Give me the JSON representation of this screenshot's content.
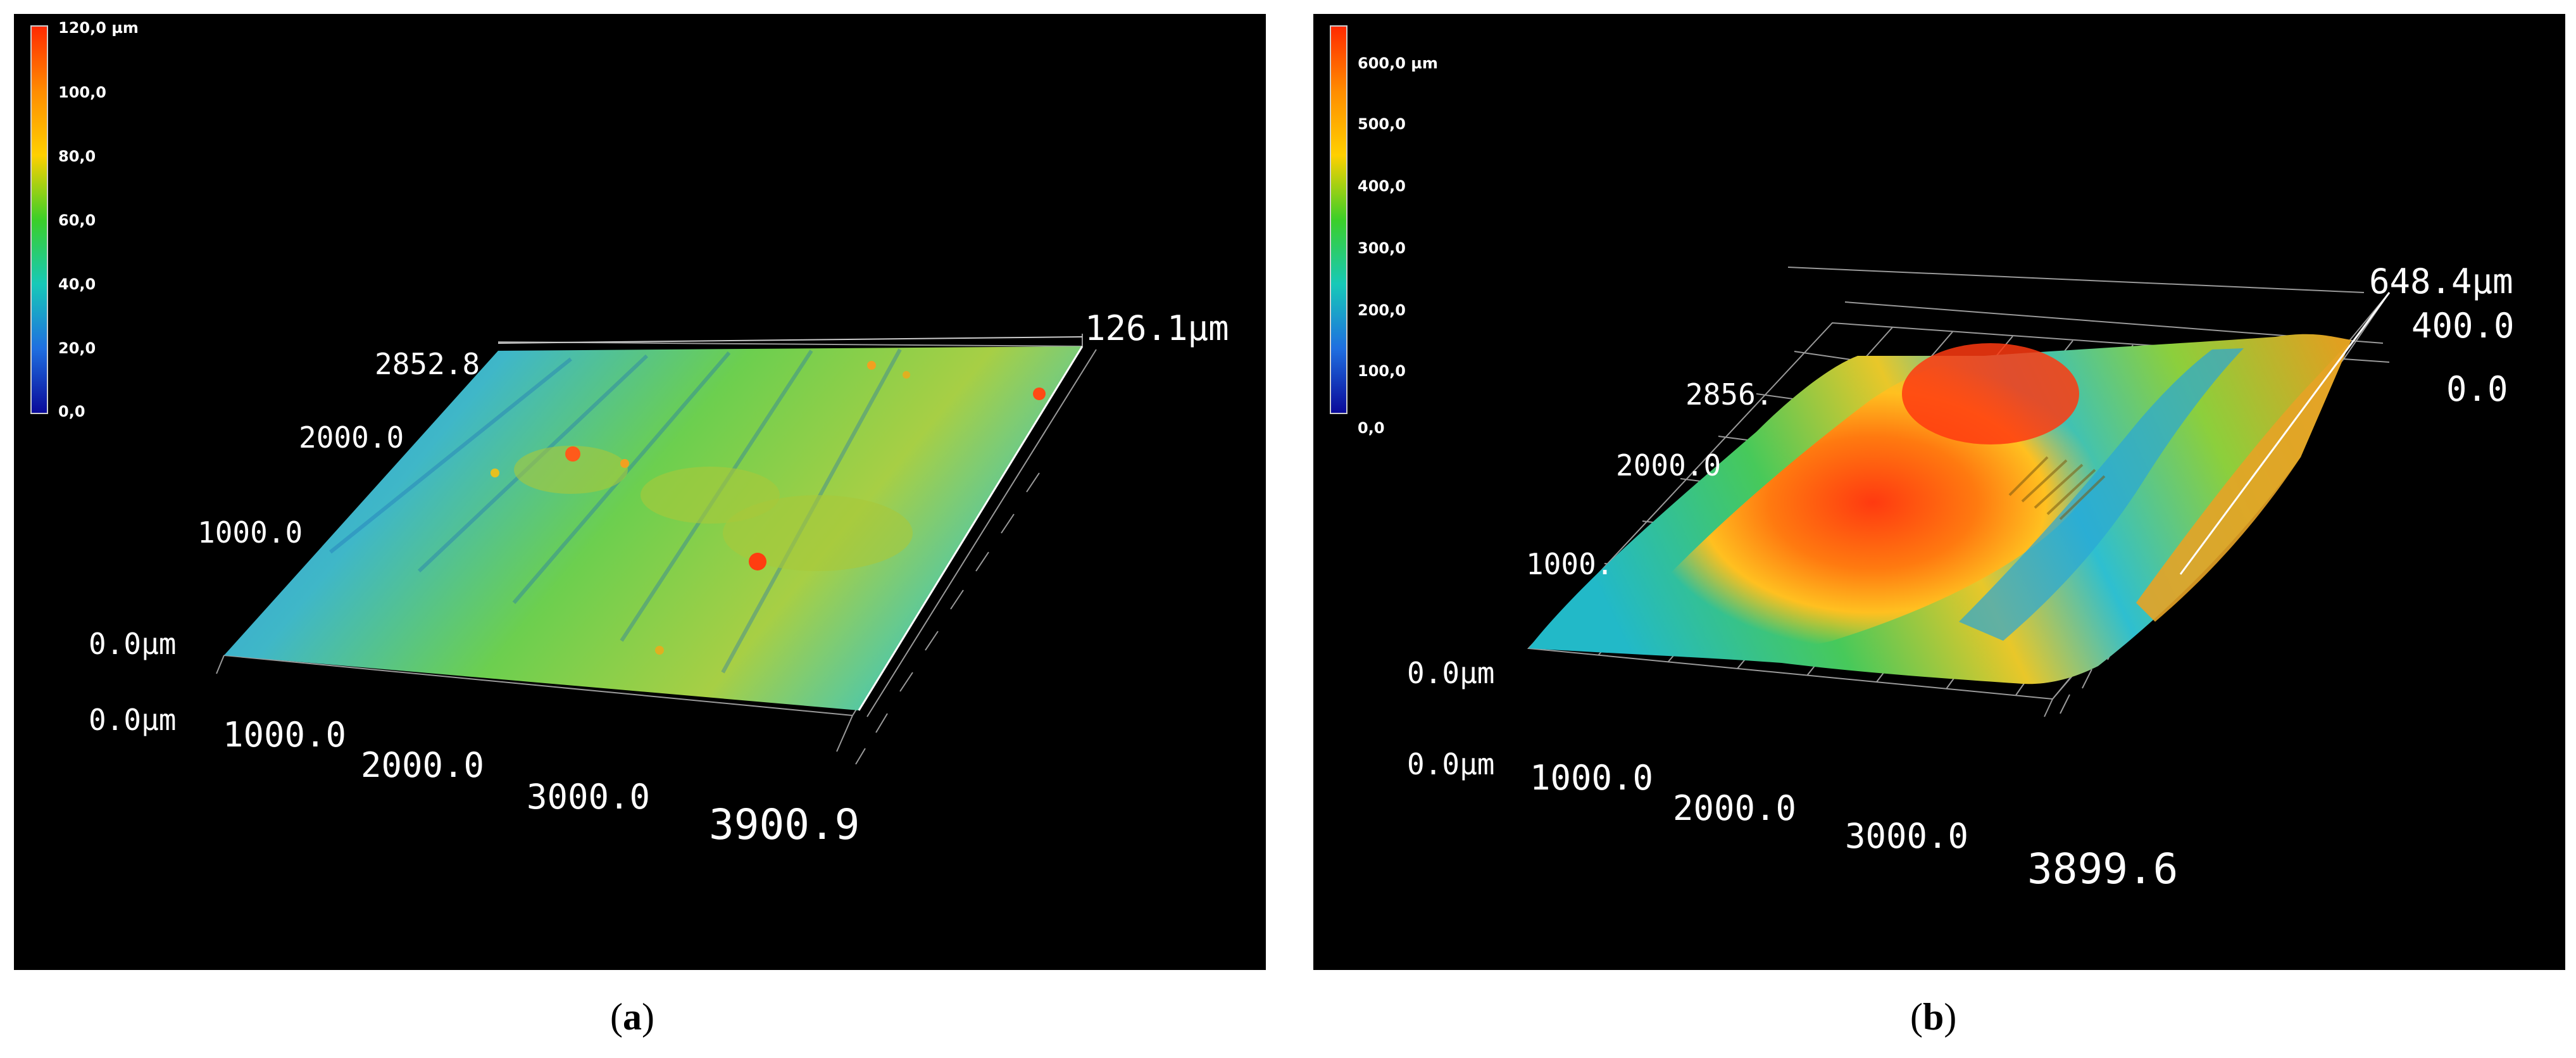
{
  "panels": [
    {
      "id": "a",
      "caption_letter": "a",
      "colorbar": {
        "labels": [
          "120,0 µm",
          "100,0",
          "80,0",
          "60,0",
          "40,0",
          "20,0",
          "0,0"
        ],
        "colors": [
          "#ff2a00",
          "#ff8c00",
          "#ffd000",
          "#3ccf28",
          "#17c9b8",
          "#1f6fe0",
          "#0a0a9a"
        ]
      },
      "axes": {
        "z_top": "126.1µm",
        "y_top": "2852.8",
        "y_mid": "2000.0",
        "y_low": "1000.0",
        "y_zero": "0.0µm",
        "x_zero": "0.0µm",
        "x_1": "1000.0",
        "x_2": "2000.0",
        "x_3": "3000.0",
        "x_end": "3900.9"
      }
    },
    {
      "id": "b",
      "caption_letter": "b",
      "colorbar": {
        "labels": [
          "600,0 µm",
          "500,0",
          "400,0",
          "300,0",
          "200,0",
          "100,0",
          "0,0"
        ],
        "colors": [
          "#ff2a00",
          "#ff8c00",
          "#ffd000",
          "#3ccf28",
          "#17c9b8",
          "#1f6fe0",
          "#0a0a9a"
        ]
      },
      "axes": {
        "z_top": "648.4µm",
        "z_mid": "400.0",
        "z_zero": "0.0",
        "y_top": "2856.",
        "y_mid": "2000.0",
        "y_low": "1000.",
        "y_zero": "0.0µm",
        "x_zero": "0.0µm",
        "x_1": "1000.0",
        "x_2": "2000.0",
        "x_3": "3000.0",
        "x_end": "3899.6"
      }
    }
  ]
}
